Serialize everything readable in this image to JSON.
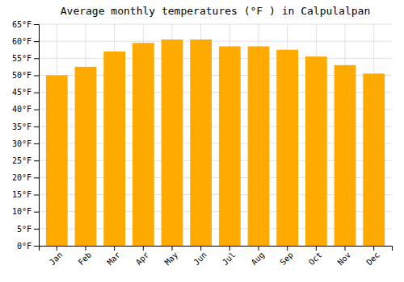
{
  "chart_data": {
    "type": "bar",
    "title": "Average monthly temperatures (°F ) in Calpulalpan",
    "categories": [
      "Jan",
      "Feb",
      "Mar",
      "Apr",
      "May",
      "Jun",
      "Jul",
      "Aug",
      "Sep",
      "Oct",
      "Nov",
      "Dec"
    ],
    "values": [
      50.0,
      52.5,
      57.0,
      59.5,
      60.5,
      60.5,
      58.5,
      58.5,
      57.5,
      55.5,
      53.0,
      50.5
    ],
    "color": "#FFAA00",
    "ylim": [
      0,
      65
    ],
    "yticks": [
      {
        "value": 0,
        "label": "0°F"
      },
      {
        "value": 5,
        "label": "5°F"
      },
      {
        "value": 10,
        "label": "10°F"
      },
      {
        "value": 15,
        "label": "15°F"
      },
      {
        "value": 20,
        "label": "20°F"
      },
      {
        "value": 25,
        "label": "25°F"
      },
      {
        "value": 30,
        "label": "30°F"
      },
      {
        "value": 35,
        "label": "35°F"
      },
      {
        "value": 40,
        "label": "40°F"
      },
      {
        "value": 45,
        "label": "45°F"
      },
      {
        "value": 50,
        "label": "50°F"
      },
      {
        "value": 55,
        "label": "55°F"
      },
      {
        "value": 60,
        "label": "60°F"
      },
      {
        "value": 65,
        "label": "65°F"
      }
    ],
    "grid": true
  }
}
